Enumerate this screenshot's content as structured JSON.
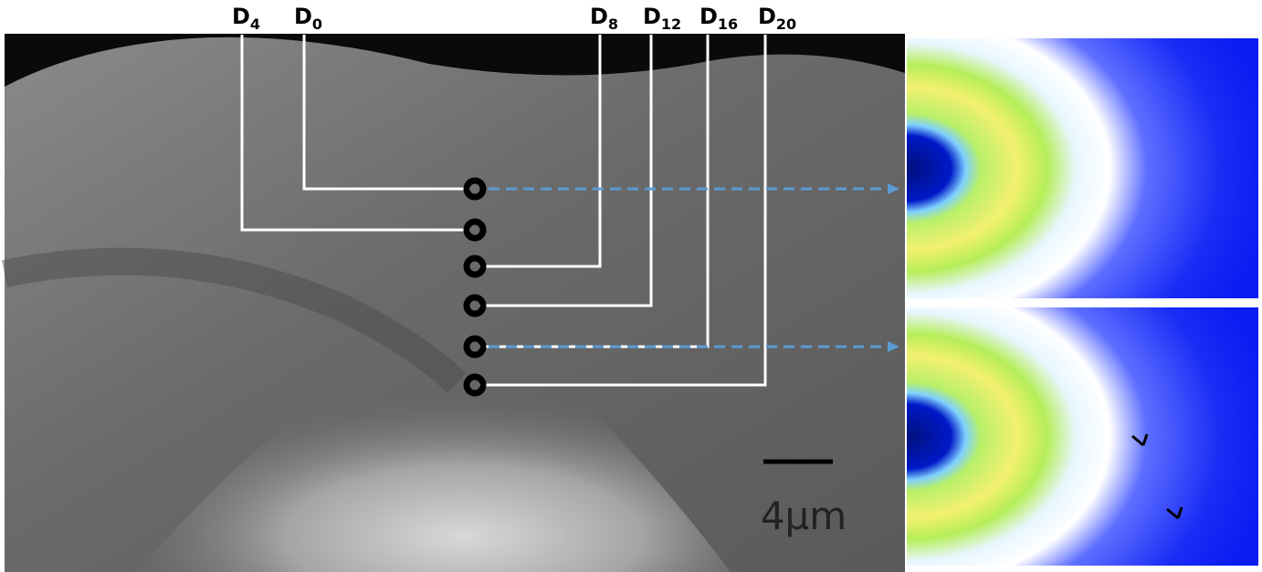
{
  "labels": [
    {
      "main": "D",
      "sub": "4"
    },
    {
      "main": "D",
      "sub": "0"
    },
    {
      "main": "D",
      "sub": "8"
    },
    {
      "main": "D",
      "sub": "12"
    },
    {
      "main": "D",
      "sub": "16"
    },
    {
      "main": "D",
      "sub": "20"
    }
  ],
  "scale_bar": "4μm"
}
